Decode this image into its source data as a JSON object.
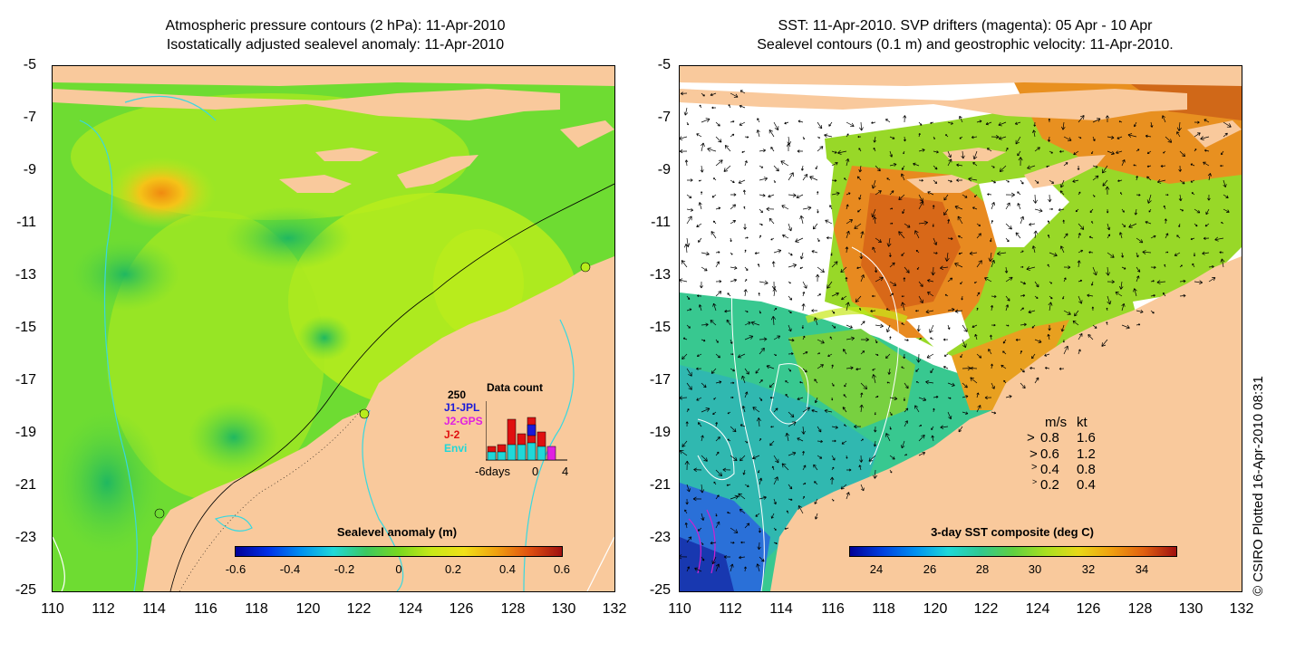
{
  "left_panel": {
    "title_line1": "Atmospheric pressure contours (2 hPa): 11-Apr-2010",
    "title_line2": "Isostatically adjusted sealevel anomaly: 11-Apr-2010",
    "colorbar_label": "Sealevel anomaly (m)",
    "colorbar_ticks": [
      "-0.6",
      "-0.4",
      "-0.2",
      "0",
      "0.2",
      "0.4",
      "0.6"
    ],
    "inset": {
      "count_label": "250",
      "title": "Data count",
      "missions": [
        {
          "name": "J1-JPL",
          "color": "#1a1ad8"
        },
        {
          "name": "J2-GPS",
          "color": "#e020e0"
        },
        {
          "name": "J-2",
          "color": "#e01010"
        },
        {
          "name": "Envi",
          "color": "#20d8d8"
        }
      ],
      "x_labels": [
        "-6days",
        "0",
        "4"
      ]
    }
  },
  "right_panel": {
    "title_line1": "SST: 11-Apr-2010. SVP drifters (magenta): 05 Apr - 10 Apr",
    "title_line2": "Sealevel contours (0.1 m) and geostrophic velocity: 11-Apr-2010.",
    "colorbar_label": "3-day SST composite (deg C)",
    "colorbar_ticks": [
      "24",
      "26",
      "28",
      "30",
      "32",
      "34"
    ],
    "velocity_legend": {
      "header_ms": "m/s",
      "header_kt": "kt",
      "rows": [
        {
          "ms": "0.8",
          "kt": "1.6"
        },
        {
          "ms": "0.6",
          "kt": "1.2"
        },
        {
          "ms": "0.4",
          "kt": "0.8"
        },
        {
          "ms": "0.2",
          "kt": "0.4"
        }
      ]
    }
  },
  "axes": {
    "lat_labels": [
      "-5",
      "-7",
      "-9",
      "-11",
      "-13",
      "-15",
      "-17",
      "-19",
      "-21",
      "-23",
      "-25"
    ],
    "lon_labels": [
      "110",
      "112",
      "114",
      "116",
      "118",
      "120",
      "122",
      "124",
      "126",
      "128",
      "130",
      "132"
    ]
  },
  "credit": "© CSIRO Plotted 16-Apr-2010 08:31",
  "colors": {
    "land": "#f9c99c",
    "ocean_mid": "#5fd83a",
    "ocean_light": "#b8ec1c",
    "contour_cyan": "#38d8e0"
  }
}
